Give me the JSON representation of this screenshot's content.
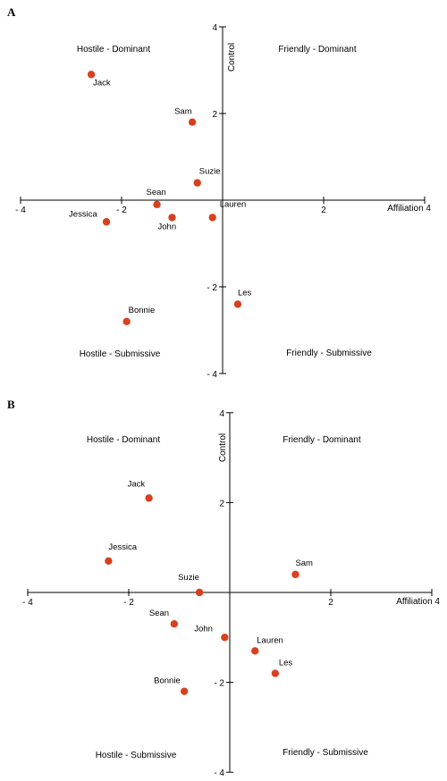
{
  "chart_data": [
    {
      "type": "scatter",
      "panel": "A",
      "xlabel": "Affiliation",
      "ylabel": "Control",
      "xlim": [
        -4,
        4
      ],
      "ylim": [
        -4,
        4
      ],
      "grid": false,
      "x_ticks": [
        -4,
        -2,
        2,
        4
      ],
      "y_ticks": [
        4,
        2,
        -2,
        -4
      ],
      "x_tick_labels": [
        "- 4",
        "- 2",
        "2",
        "4"
      ],
      "y_tick_labels": [
        "4",
        "2",
        "- 2",
        "- 4"
      ],
      "point_color": "#d9401f",
      "quadrants": {
        "top_left": "Hostile - Dominant",
        "top_right": "Friendly - Dominant",
        "bottom_left": "Hostile - Submissive",
        "bottom_right": "Friendly - Submissive"
      },
      "points": [
        {
          "label": "Jack",
          "x": -2.6,
          "y": 2.9
        },
        {
          "label": "Sam",
          "x": -0.6,
          "y": 1.8
        },
        {
          "label": "Suzie",
          "x": -0.5,
          "y": 0.4
        },
        {
          "label": "Sean",
          "x": -1.3,
          "y": -0.1
        },
        {
          "label": "Lauren",
          "x": -0.2,
          "y": -0.4
        },
        {
          "label": "John",
          "x": -1.0,
          "y": -0.4
        },
        {
          "label": "Jessica",
          "x": -2.3,
          "y": -0.5
        },
        {
          "label": "Les",
          "x": 0.3,
          "y": -2.4
        },
        {
          "label": "Bonnie",
          "x": -1.9,
          "y": -2.8
        }
      ]
    },
    {
      "type": "scatter",
      "panel": "B",
      "xlabel": "Affiliation",
      "ylabel": "Control",
      "xlim": [
        -4,
        4
      ],
      "ylim": [
        -4,
        4
      ],
      "grid": false,
      "x_ticks": [
        -4,
        -2,
        2,
        4
      ],
      "y_ticks": [
        4,
        2,
        -2,
        -4
      ],
      "x_tick_labels": [
        "- 4",
        "- 2",
        "2",
        "4"
      ],
      "y_tick_labels": [
        "4",
        "2",
        "- 2",
        "- 4"
      ],
      "point_color": "#d9401f",
      "quadrants": {
        "top_left": "Hostile - Dominant",
        "top_right": "Friendly - Dominant",
        "bottom_left": "Hostile - Submissive",
        "bottom_right": "Friendly - Submissive"
      },
      "points": [
        {
          "label": "Jack",
          "x": -1.6,
          "y": 2.1
        },
        {
          "label": "Jessica",
          "x": -2.4,
          "y": 0.7
        },
        {
          "label": "Sam",
          "x": 1.3,
          "y": 0.4
        },
        {
          "label": "Suzie",
          "x": -0.6,
          "y": 0.0
        },
        {
          "label": "Sean",
          "x": -1.1,
          "y": -0.7
        },
        {
          "label": "John",
          "x": -0.1,
          "y": -1.0
        },
        {
          "label": "Lauren",
          "x": 0.5,
          "y": -1.3
        },
        {
          "label": "Les",
          "x": 0.9,
          "y": -1.8
        },
        {
          "label": "Bonnie",
          "x": -0.9,
          "y": -2.2
        }
      ]
    }
  ]
}
